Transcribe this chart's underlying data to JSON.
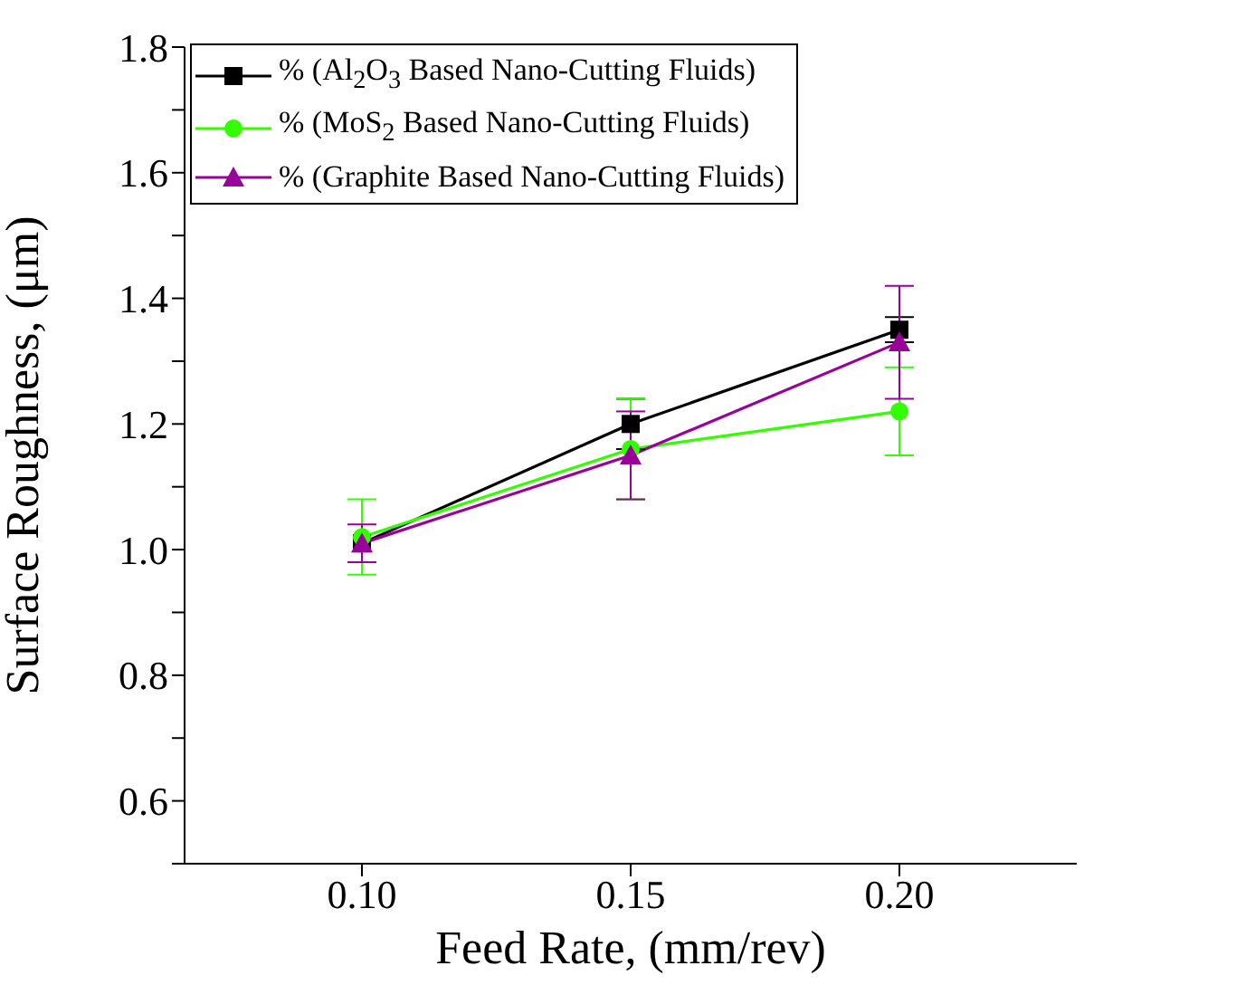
{
  "chart_data": {
    "type": "line",
    "xlabel": "Feed Rate, (mm/rev)",
    "ylabel": "Surface Roughness, (μm)",
    "x": [
      0.1,
      0.15,
      0.2
    ],
    "xlim": [
      0.067,
      0.233
    ],
    "xticks": [
      {
        "value": 0.1,
        "label": "0.10"
      },
      {
        "value": 0.15,
        "label": "0.15"
      },
      {
        "value": 0.2,
        "label": "0.20"
      }
    ],
    "ylim": [
      0.5,
      1.8
    ],
    "yticks": [
      {
        "value": 0.5,
        "label": null
      },
      {
        "value": 0.6,
        "label": "0.6"
      },
      {
        "value": 0.7,
        "label": null
      },
      {
        "value": 0.8,
        "label": "0.8"
      },
      {
        "value": 0.9,
        "label": null
      },
      {
        "value": 1.0,
        "label": "1.0"
      },
      {
        "value": 1.1,
        "label": null
      },
      {
        "value": 1.2,
        "label": "1.2"
      },
      {
        "value": 1.3,
        "label": null
      },
      {
        "value": 1.4,
        "label": "1.4"
      },
      {
        "value": 1.5,
        "label": null
      },
      {
        "value": 1.6,
        "label": "1.6"
      },
      {
        "value": 1.7,
        "label": null
      },
      {
        "value": 1.8,
        "label": "1.8"
      }
    ],
    "grid": false,
    "legend": "top left",
    "line_style": "solid",
    "series": [
      {
        "name": "% (Al$_{2}$O$_{3}$ Based Nano-Cutting Fluids)",
        "color": "#000000",
        "marker": "square",
        "values": [
          1.01,
          1.2,
          1.35
        ],
        "errors": [
          null,
          0.04,
          0.02
        ]
      },
      {
        "name": "% (MoS$_{2}$ Based Nano-Cutting Fluids)",
        "color": "#33ff00",
        "marker": "circle",
        "values": [
          1.02,
          1.16,
          1.22
        ],
        "errors": [
          0.06,
          0.08,
          0.07
        ]
      },
      {
        "name": "% (Graphite Based Nano-Cutting Fluids)",
        "color": "#990099",
        "marker": "triangle",
        "values": [
          1.01,
          1.15,
          1.33
        ],
        "errors": [
          0.03,
          0.07,
          0.09
        ]
      }
    ]
  }
}
